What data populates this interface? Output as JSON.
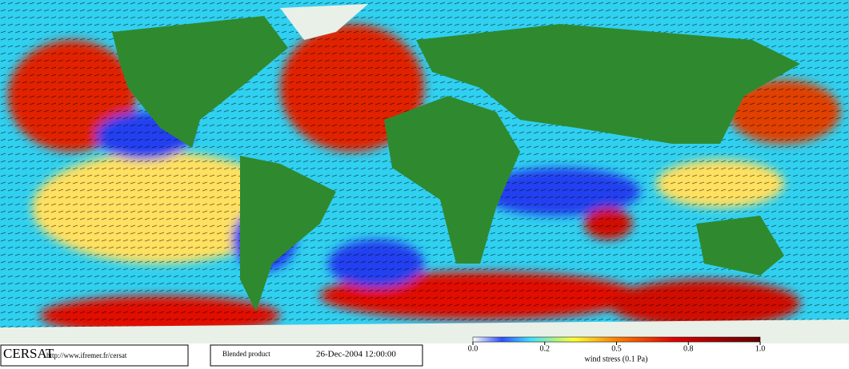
{
  "logo": "CERSAT",
  "url": "http://www.ifremer.fr/cersat",
  "product": "Blended product",
  "timestamp": "26-Dec-2004 12:00:00",
  "colorbar": {
    "title": "wind stress (0.1 Pa)",
    "lim": [
      0,
      1
    ],
    "ticks": [
      {
        "value": 0,
        "label": "0.0"
      },
      {
        "value": 0.2,
        "label": "0.2"
      },
      {
        "value": 0.5,
        "label": "0.5"
      },
      {
        "value": 0.8,
        "label": "0.8"
      },
      {
        "value": 1,
        "label": "1.0"
      }
    ]
  }
}
